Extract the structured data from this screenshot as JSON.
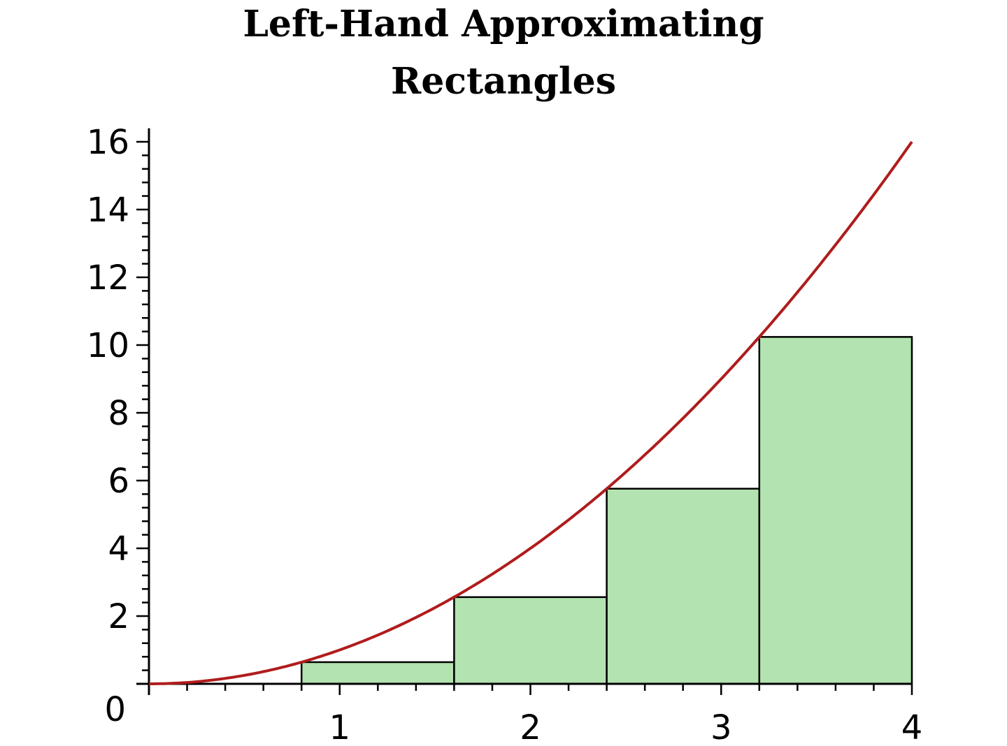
{
  "chart_data": {
    "type": "bar",
    "title_lines": [
      "Left-Hand Approximating",
      "Rectangles"
    ],
    "xlabel": "",
    "ylabel": "",
    "xlim": [
      0,
      4
    ],
    "ylim": [
      0,
      16.4
    ],
    "x_ticks": [
      1,
      2,
      3,
      4
    ],
    "y_ticks": [
      0,
      2,
      4,
      6,
      8,
      10,
      12,
      14,
      16
    ],
    "x_minor_step": 0.2,
    "y_minor_step": 0.4,
    "grid": false,
    "curve": {
      "function": "x^2",
      "domain": [
        0,
        4
      ],
      "color": "#b01c1c"
    },
    "rectangles": {
      "left_edges": [
        0,
        0.8,
        1.6,
        2.4,
        3.2
      ],
      "width": 0.8,
      "heights": [
        0,
        0.64,
        2.56,
        5.76,
        10.24
      ],
      "fill": "#b3e3b0",
      "stroke": "#000000"
    }
  }
}
